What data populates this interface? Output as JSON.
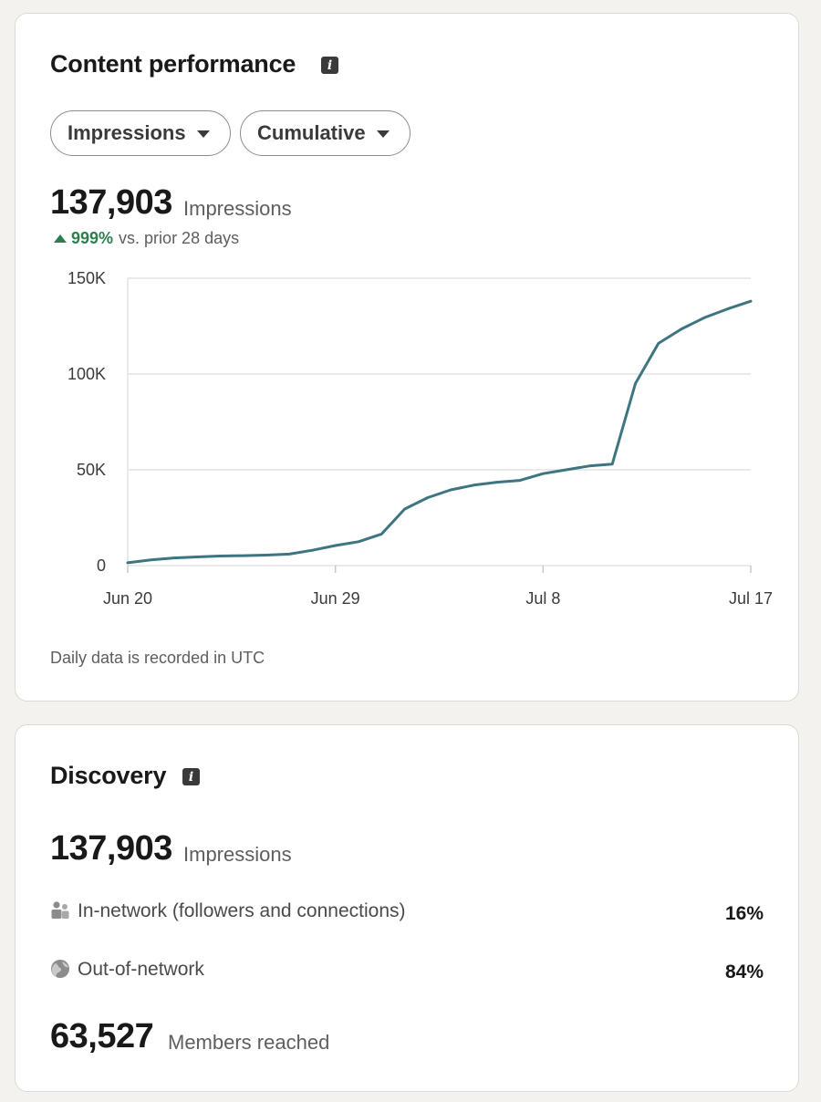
{
  "performance": {
    "title": "Content performance",
    "info_icon": "info-icon",
    "metric_dropdown": "Impressions",
    "mode_dropdown": "Cumulative",
    "total": "137,903",
    "total_label": "Impressions",
    "delta_pct": "999%",
    "delta_text": "vs. prior 28 days",
    "footnote": "Daily data is recorded in UTC"
  },
  "colors": {
    "line": "#3d7580",
    "positive": "#2e7d4f",
    "grid": "#e4e4e4"
  },
  "chart_data": {
    "type": "line",
    "x": [
      "Jun 20",
      "Jun 21",
      "Jun 22",
      "Jun 23",
      "Jun 24",
      "Jun 25",
      "Jun 26",
      "Jun 27",
      "Jun 28",
      "Jun 29",
      "Jun 30",
      "Jul 1",
      "Jul 2",
      "Jul 3",
      "Jul 4",
      "Jul 5",
      "Jul 6",
      "Jul 7",
      "Jul 8",
      "Jul 9",
      "Jul 10",
      "Jul 11",
      "Jul 12",
      "Jul 13",
      "Jul 14",
      "Jul 15",
      "Jul 16",
      "Jul 17"
    ],
    "series": [
      {
        "values": [
          1500,
          3000,
          4000,
          4500,
          5000,
          5200,
          5500,
          6000,
          8000,
          10500,
          12500,
          16500,
          29500,
          35500,
          39500,
          42000,
          43500,
          44500,
          48000,
          50000,
          52000,
          53000,
          95000,
          116000,
          123500,
          129500,
          134000,
          138000
        ]
      }
    ],
    "xticks": [
      "Jun 20",
      "Jun 29",
      "Jul 8",
      "Jul 17"
    ],
    "yticks": [
      "0",
      "50K",
      "100K",
      "150K"
    ],
    "ylim": [
      0,
      150000
    ],
    "grid": true
  },
  "discovery": {
    "title": "Discovery",
    "info_icon": "info-icon",
    "total": "137,903",
    "total_label": "Impressions",
    "rows": [
      {
        "icon": "people-icon",
        "label": "In-network (followers and connections)",
        "pct": "16%"
      },
      {
        "icon": "globe-icon",
        "label": "Out-of-network",
        "pct": "84%"
      }
    ],
    "members": "63,527",
    "members_label": "Members reached"
  }
}
